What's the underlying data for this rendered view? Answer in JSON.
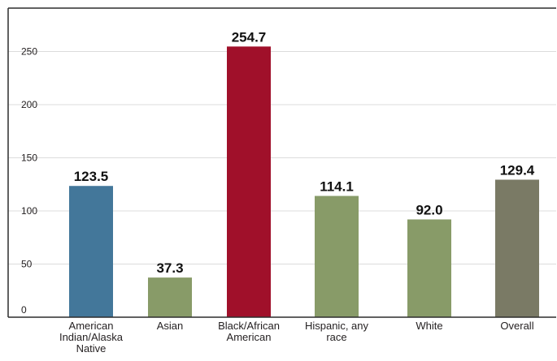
{
  "chart_data": {
    "type": "bar",
    "title": "",
    "xlabel": "",
    "ylabel": "",
    "ylim": [
      0,
      275
    ],
    "yticks": [
      0,
      50,
      100,
      150,
      200,
      250
    ],
    "grid": true,
    "legend": "none",
    "categories": [
      [
        "American",
        "Indian/Alaska",
        "Native"
      ],
      [
        "Asian"
      ],
      [
        "Black/African",
        "American"
      ],
      [
        "Hispanic, any",
        "race"
      ],
      [
        "White"
      ],
      [
        "Overall"
      ]
    ],
    "values": [
      123.5,
      37.3,
      254.7,
      114.1,
      92.0,
      129.4
    ],
    "value_labels": [
      "123.5",
      "37.3",
      "254.7",
      "114.1",
      "92.0",
      "129.4"
    ],
    "colors": [
      "#43779a",
      "#889b68",
      "#a0102a",
      "#889b68",
      "#889b68",
      "#7a7a65"
    ],
    "gridline_color": "#dcdcdc",
    "frame_color": "#2d2d2d"
  }
}
